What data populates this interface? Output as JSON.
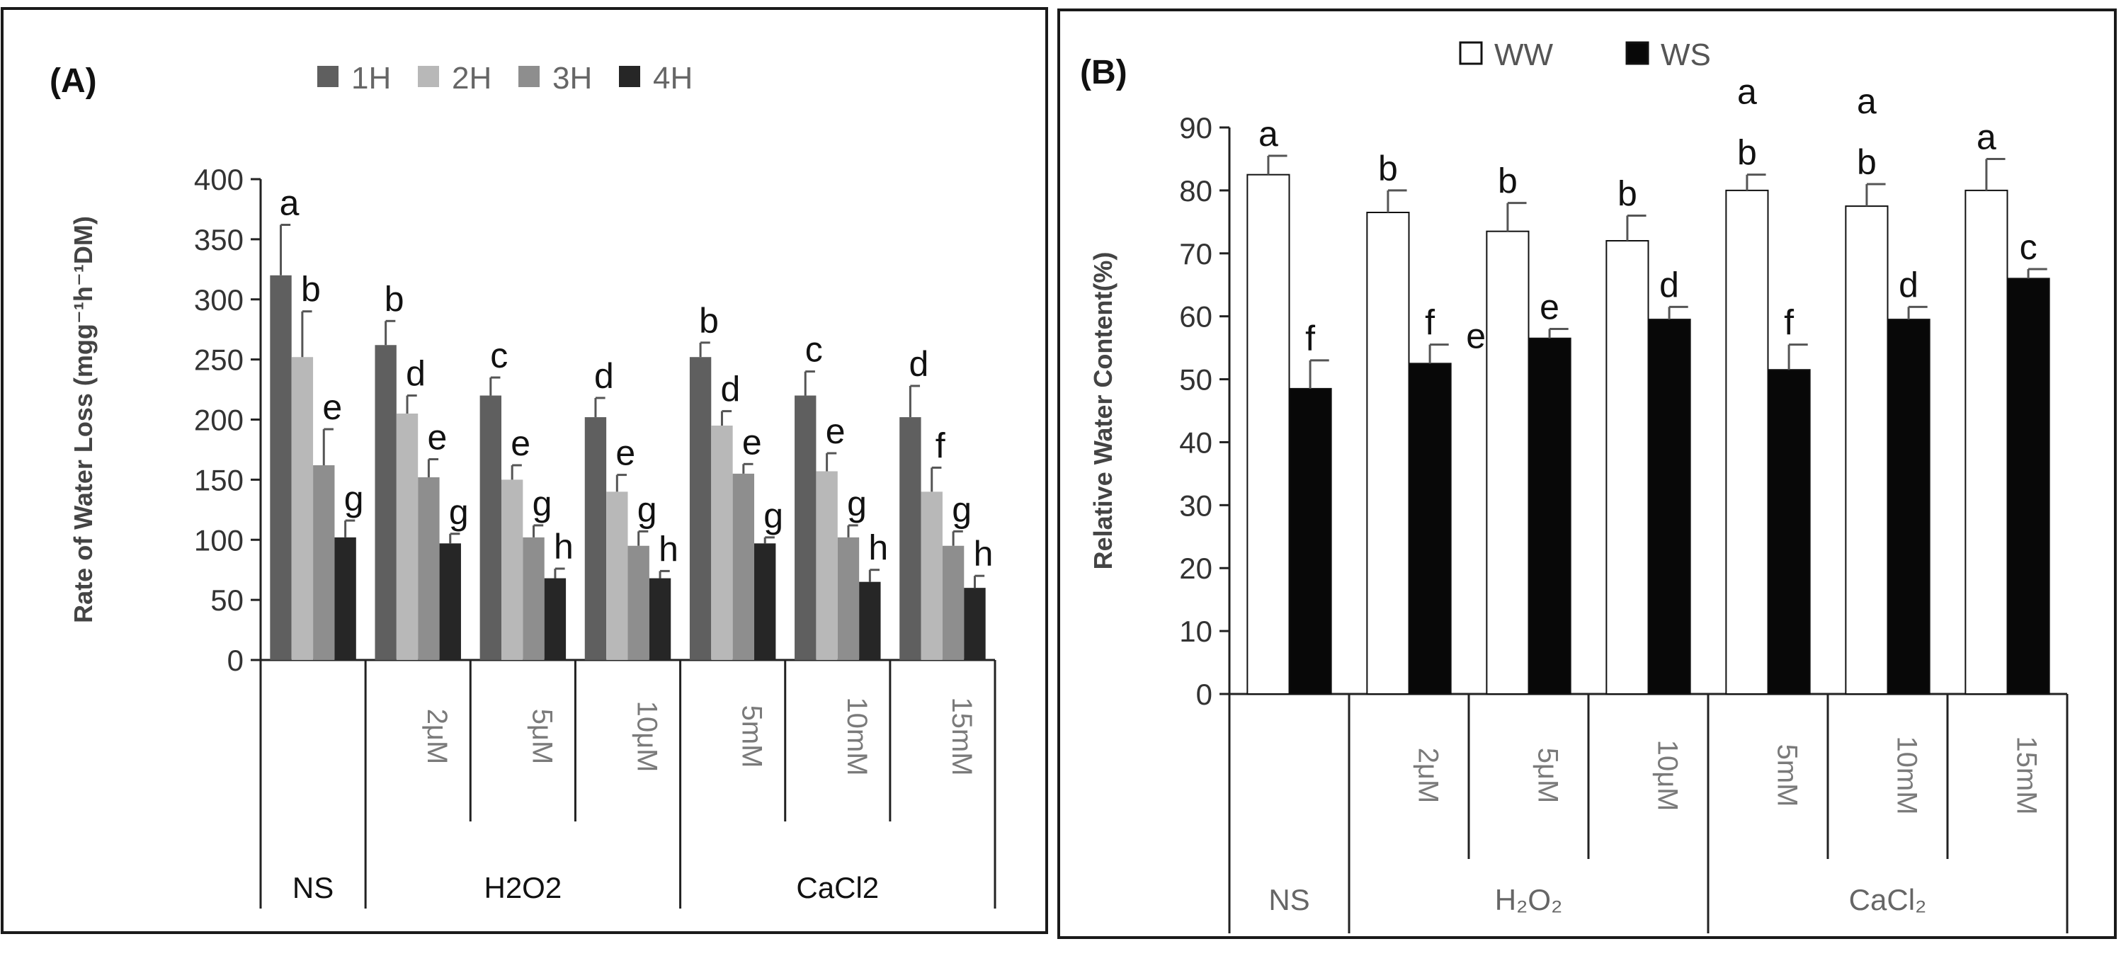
{
  "colors": {
    "h1": "#5f5f5f",
    "h2": "#b8b8b8",
    "h3": "#8e8e8e",
    "h4": "#262626",
    "ww": "#ffffff",
    "ws": "#080808",
    "axis": "#222222",
    "label_gray": "#7a7a7a",
    "axis_title": "#444444"
  },
  "chart_data": [
    {
      "type": "bar",
      "panel_label": "(A)",
      "title": "",
      "xlabel": "",
      "ylabel": "Rate of Water Loss (mgg⁻¹h⁻¹DM)",
      "ylim": [
        0,
        400
      ],
      "yticks": [
        0,
        50,
        100,
        150,
        200,
        250,
        300,
        350,
        400
      ],
      "legend_position": "top",
      "categories": [
        "NS",
        "2μM",
        "5μM",
        "10μM",
        "5mM",
        "10mM",
        "15mM"
      ],
      "category_labels": [
        "",
        "2μM",
        "5μM",
        "10μM",
        "5mM",
        "10mM",
        "15mM"
      ],
      "groups": [
        {
          "label": "NS",
          "span": [
            0,
            0
          ]
        },
        {
          "label": "H2O2",
          "span": [
            1,
            3
          ]
        },
        {
          "label": "CaCl2",
          "span": [
            4,
            6
          ]
        }
      ],
      "series": [
        {
          "name": "1H",
          "color_key": "h1",
          "values": [
            320,
            262,
            220,
            202,
            252,
            220,
            202
          ],
          "errors": [
            42,
            20,
            15,
            16,
            12,
            20,
            26
          ],
          "letters": [
            "a",
            "b",
            "c",
            "d",
            "b",
            "c",
            "d"
          ]
        },
        {
          "name": "2H",
          "color_key": "h2",
          "values": [
            252,
            205,
            150,
            140,
            195,
            157,
            140
          ],
          "errors": [
            38,
            15,
            12,
            14,
            12,
            15,
            20
          ],
          "letters": [
            "b",
            "d",
            "e",
            "e",
            "d",
            "e",
            "f"
          ]
        },
        {
          "name": "3H",
          "color_key": "h3",
          "values": [
            162,
            152,
            102,
            95,
            155,
            102,
            95
          ],
          "errors": [
            30,
            15,
            10,
            12,
            8,
            10,
            12
          ],
          "letters": [
            "e",
            "e",
            "g",
            "g",
            "e",
            "g",
            "g"
          ]
        },
        {
          "name": "4H",
          "color_key": "h4",
          "values": [
            102,
            97,
            68,
            68,
            97,
            65,
            60
          ],
          "errors": [
            14,
            8,
            8,
            6,
            5,
            10,
            10
          ],
          "letters": [
            "g",
            "g",
            "h",
            "h",
            "g",
            "h",
            "h"
          ]
        }
      ]
    },
    {
      "type": "bar",
      "panel_label": "(B)",
      "title": "",
      "xlabel": "",
      "ylabel": "Relative Water Content(%)",
      "ylim": [
        0,
        90
      ],
      "yticks": [
        0,
        10,
        20,
        30,
        40,
        50,
        60,
        70,
        80,
        90
      ],
      "legend_position": "top",
      "categories": [
        "NS",
        "2μM",
        "5μM",
        "10μM",
        "5mM",
        "10mM",
        "15mM"
      ],
      "category_labels": [
        "",
        "2μM",
        "5μM",
        "10μM",
        "5mM",
        "10mM",
        "15mM"
      ],
      "groups": [
        {
          "label": "NS",
          "span": [
            0,
            0
          ]
        },
        {
          "label": "H₂O₂",
          "span": [
            1,
            3
          ]
        },
        {
          "label": "CaCl₂",
          "span": [
            4,
            6
          ]
        }
      ],
      "series": [
        {
          "name": "WW",
          "color_key": "ww",
          "values": [
            82.5,
            76.5,
            73.5,
            72,
            80,
            77.5,
            80
          ],
          "errors": [
            3,
            3.5,
            4.5,
            4,
            2.5,
            3.5,
            5
          ],
          "letters": [
            "a",
            "b",
            "b",
            "b",
            "b",
            "b",
            "a"
          ],
          "extra_letters": [
            "",
            "",
            "",
            "",
            "a",
            "a",
            ""
          ]
        },
        {
          "name": "WS",
          "color_key": "ws",
          "values": [
            48.5,
            52.5,
            56.5,
            59.5,
            51.5,
            59.5,
            66
          ],
          "errors": [
            4.5,
            3,
            1.5,
            2,
            4,
            2,
            1.5
          ],
          "letters": [
            "f",
            "f",
            "e",
            "d",
            "f",
            "d",
            "c"
          ],
          "extra_letters": [
            "",
            "e",
            "",
            "",
            "",
            "",
            ""
          ]
        }
      ]
    }
  ]
}
